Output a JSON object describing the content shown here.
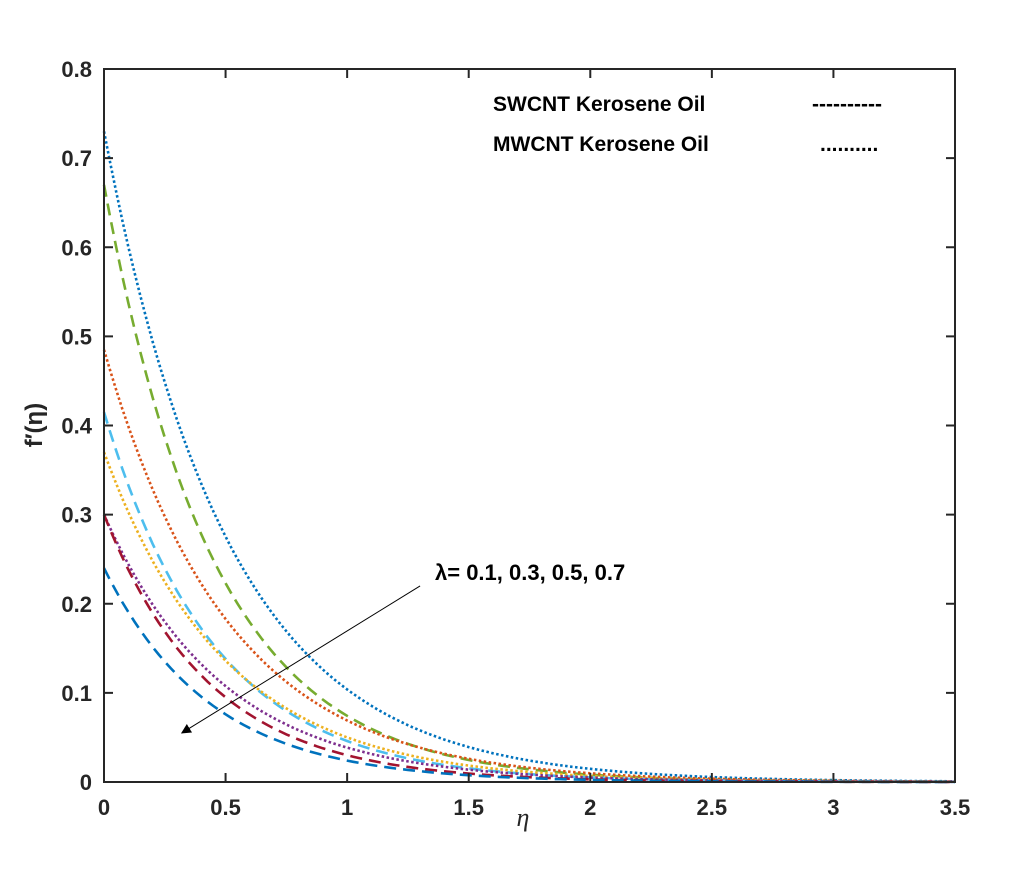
{
  "chart_data": {
    "type": "line",
    "title": "",
    "xlabel": "η",
    "ylabel": "f′(η)",
    "xlim": [
      0,
      3.5
    ],
    "ylim": [
      0,
      0.8
    ],
    "xticks": [
      0,
      0.5,
      1,
      1.5,
      2,
      2.5,
      3,
      3.5
    ],
    "xtick_labels": [
      "0",
      "0.5",
      "1",
      "1.5",
      "2",
      "2.5",
      "3",
      "3.5"
    ],
    "yticks": [
      0,
      0.1,
      0.2,
      0.3,
      0.4,
      0.5,
      0.6,
      0.7,
      0.8
    ],
    "ytick_labels": [
      "0",
      "0.1",
      "0.2",
      "0.3",
      "0.4",
      "0.5",
      "0.6",
      "0.7",
      "0.8"
    ],
    "legend": [
      {
        "label": "SWCNT Kerosene Oil",
        "sample": "----------",
        "style": "dashed"
      },
      {
        "label": "MWCNT Kerosene Oil",
        "sample": "..........",
        "style": "dotted"
      }
    ],
    "annotation": {
      "text": "λ= 0.1, 0.3, 0.5, 0.7",
      "arrow_from": [
        1.3,
        0.22
      ],
      "arrow_to": [
        0.32,
        0.055
      ]
    },
    "series": [
      {
        "name": "MWCNT λ=0.1",
        "style": "dotted",
        "color": "#0072BD",
        "f0": 0.73,
        "decay": 1.95
      },
      {
        "name": "SWCNT λ=0.1",
        "style": "dashed",
        "color": "#77AC30",
        "f0": 0.67,
        "decay": 2.2
      },
      {
        "name": "MWCNT λ=0.3",
        "style": "dotted",
        "color": "#D95319",
        "f0": 0.485,
        "decay": 1.95
      },
      {
        "name": "SWCNT λ=0.3",
        "style": "dashed",
        "color": "#4DBEEE",
        "f0": 0.415,
        "decay": 2.2
      },
      {
        "name": "MWCNT λ=0.5",
        "style": "dotted",
        "color": "#EDB120",
        "f0": 0.37,
        "decay": 2.0
      },
      {
        "name": "MWCNT λ=0.7",
        "style": "dotted",
        "color": "#7E2F8E",
        "f0": 0.3,
        "decay": 2.05
      },
      {
        "name": "SWCNT λ=0.5",
        "style": "dashed",
        "color": "#A2142F",
        "f0": 0.3,
        "decay": 2.3
      },
      {
        "name": "SWCNT λ=0.7",
        "style": "dashed",
        "color": "#0072BD",
        "f0": 0.24,
        "decay": 2.3
      }
    ]
  }
}
